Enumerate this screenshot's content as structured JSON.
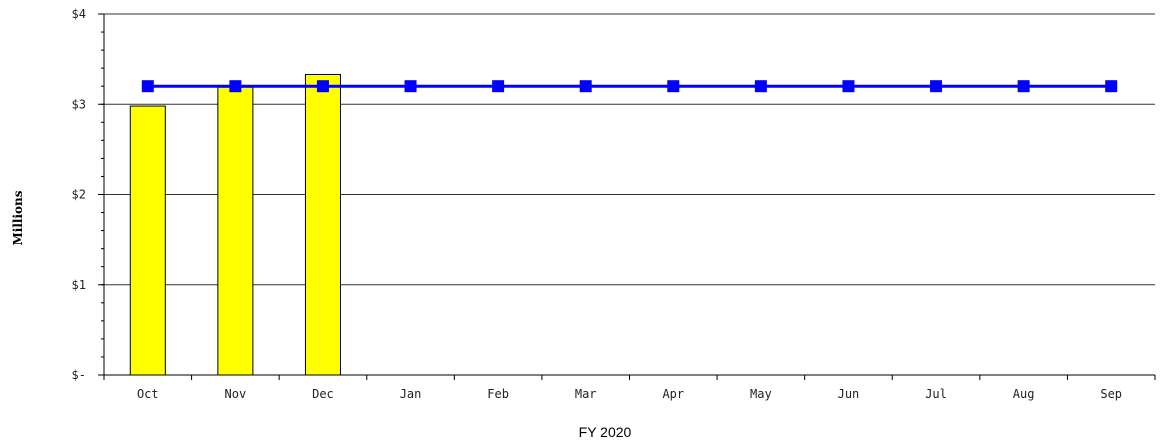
{
  "chart_data": {
    "type": "bar",
    "title": "",
    "xlabel": "FY 2020",
    "ylabel": "Millions",
    "categories": [
      "Oct",
      "Nov",
      "Dec",
      "Jan",
      "Feb",
      "Mar",
      "Apr",
      "May",
      "Jun",
      "Jul",
      "Aug",
      "Sep"
    ],
    "ylim": [
      0,
      4
    ],
    "y_ticks": [
      {
        "value": 0,
        "label": "$-"
      },
      {
        "value": 1,
        "label": "$1"
      },
      {
        "value": 2,
        "label": "$2"
      },
      {
        "value": 3,
        "label": "$3"
      },
      {
        "value": 4,
        "label": "$4"
      }
    ],
    "y_minor_step": 0.2,
    "grid": "horizontal",
    "series": [
      {
        "type": "bar",
        "color": "#ffff00",
        "edge_color": "#000000",
        "values": [
          2.98,
          3.19,
          3.33,
          null,
          null,
          null,
          null,
          null,
          null,
          null,
          null,
          null
        ]
      },
      {
        "type": "line",
        "color": "#0000ff",
        "marker": "square",
        "values": [
          3.2,
          3.2,
          3.2,
          3.2,
          3.2,
          3.2,
          3.2,
          3.2,
          3.2,
          3.2,
          3.2,
          3.2
        ]
      }
    ]
  }
}
